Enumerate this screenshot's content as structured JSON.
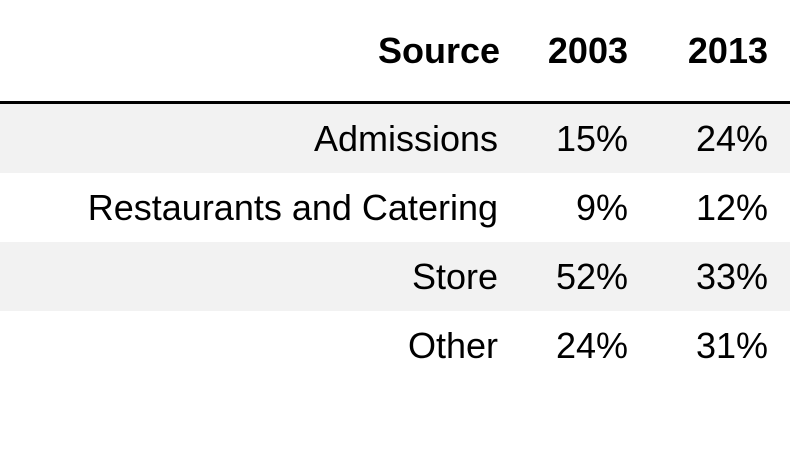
{
  "chart_data": {
    "type": "table",
    "columns": [
      "Source",
      "2003",
      "2013"
    ],
    "rows": [
      {
        "source": "Admissions",
        "y2003": "15%",
        "y2013": "24%"
      },
      {
        "source": "Restaurants and Catering",
        "y2003": "9%",
        "y2013": "12%"
      },
      {
        "source": "Store",
        "y2003": "52%",
        "y2013": "33%"
      },
      {
        "source": "Other",
        "y2003": "24%",
        "y2013": "31%"
      }
    ]
  }
}
